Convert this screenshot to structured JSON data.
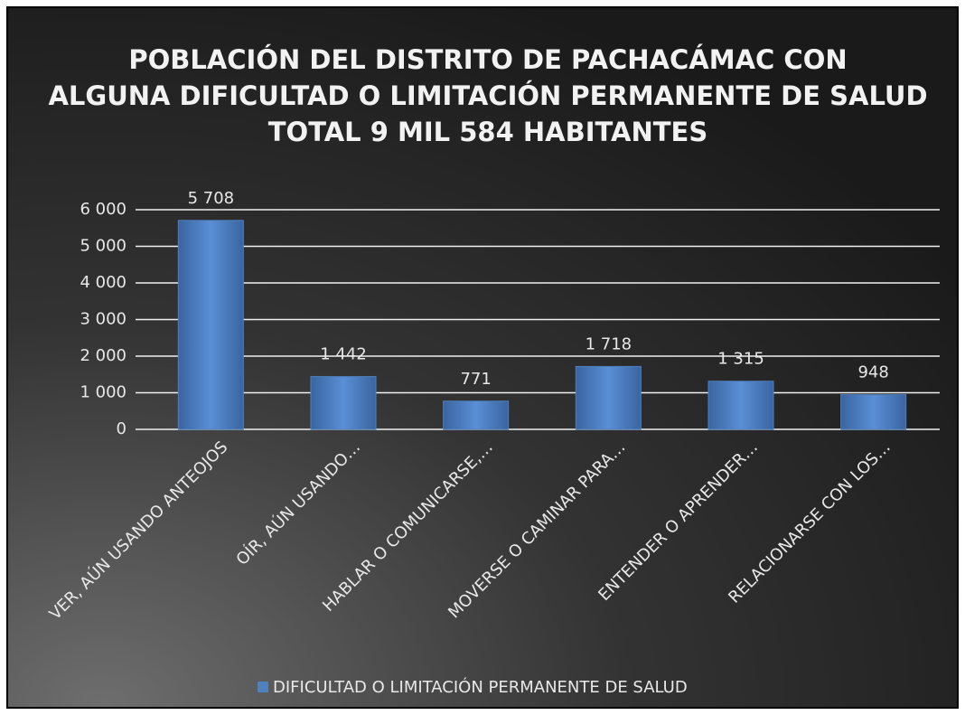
{
  "chart_data": {
    "type": "bar",
    "title": [
      "POBLACIÓN DEL DISTRITO DE PACHACÁMAC CON",
      "ALGUNA DIFICULTAD O LIMITACIÓN PERMANENTE DE SALUD",
      "TOTAL 9 MIL 584 HABITANTES"
    ],
    "categories": [
      "VER, AÚN USANDO ANTEOJOS",
      "OÍR, AÚN USANDO…",
      "HABLAR O COMUNICARSE,…",
      "MOVERSE O CAMINAR PARA…",
      "ENTENDER O APRENDER…",
      "RELACIONARSE CON LOS…"
    ],
    "series": [
      {
        "name": "DIFICULTAD O LIMITACIÓN PERMANENTE DE SALUD",
        "color": "#4f81bd",
        "values": [
          5708,
          1442,
          771,
          1718,
          1315,
          948
        ],
        "value_labels": [
          "5 708",
          "1 442",
          "771",
          "1 718",
          "1 315",
          "948"
        ]
      }
    ],
    "ylim": [
      0,
      6000
    ],
    "yticks": [
      0,
      {
        "value": 1000,
        "label": "1 000"
      },
      {
        "value": 2000,
        "label": "2 000"
      },
      {
        "value": 3000,
        "label": "3 000"
      },
      {
        "value": 4000,
        "label": "4 000"
      },
      {
        "value": 5000,
        "label": "5 000"
      },
      {
        "value": 6000,
        "label": "6 000"
      }
    ],
    "grid": true,
    "legend": "bottom"
  }
}
